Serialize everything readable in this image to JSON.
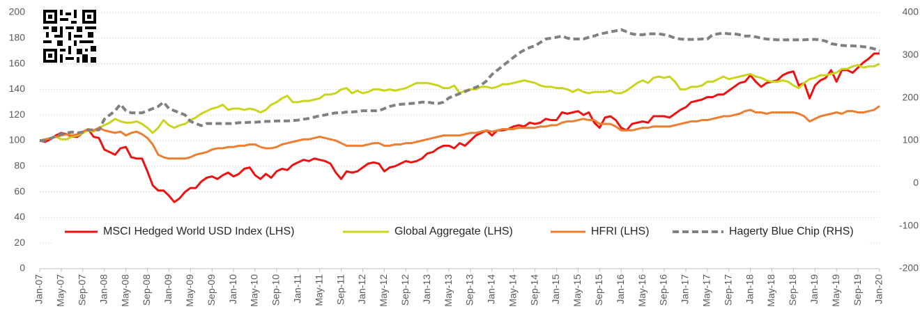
{
  "chart_data": {
    "type": "line",
    "categories": [
      "Jan-07",
      null,
      null,
      null,
      "May-07",
      null,
      null,
      null,
      "Sep-07",
      null,
      null,
      null,
      "Jan-08",
      null,
      null,
      null,
      "May-08",
      null,
      null,
      null,
      "Sep-08",
      null,
      null,
      null,
      "Jan-09",
      null,
      null,
      null,
      "May-09",
      null,
      null,
      null,
      "Sep-09",
      null,
      null,
      null,
      "Jan-10",
      null,
      null,
      null,
      "May-10",
      null,
      null,
      null,
      "Sep-10",
      null,
      null,
      null,
      "Jan-11",
      null,
      null,
      null,
      "May-11",
      null,
      null,
      null,
      "Sep-11",
      null,
      null,
      null,
      "Jan-12",
      null,
      null,
      null,
      "May-12",
      null,
      null,
      null,
      "Sep-12",
      null,
      null,
      null,
      "Jan-13",
      null,
      null,
      null,
      "May-13",
      null,
      null,
      null,
      "Sep-13",
      null,
      null,
      null,
      "Jan-14",
      null,
      null,
      null,
      "May-14",
      null,
      null,
      null,
      "Sep-14",
      null,
      null,
      null,
      "Jan-15",
      null,
      null,
      null,
      "May-15",
      null,
      null,
      null,
      "Sep-15",
      null,
      null,
      null,
      "Jan-16",
      null,
      null,
      null,
      "May-16",
      null,
      null,
      null,
      "Sep-16",
      null,
      null,
      null,
      "Jan-17",
      null,
      null,
      null,
      "May-17",
      null,
      null,
      null,
      "Sep-17",
      null,
      null,
      null,
      "Jan-18",
      null,
      null,
      null,
      "May-18",
      null,
      null,
      null,
      "Sep-18",
      null,
      null,
      null,
      "Jan-19",
      null,
      null,
      null,
      "May-19",
      null,
      null,
      null,
      "Sep-19",
      null,
      null,
      null,
      "Jan-20"
    ],
    "series": [
      {
        "name": "MSCI Hedged World USD Index (LHS)",
        "color": "#ee1111",
        "axis": "y",
        "dashed": false,
        "values": [
          100,
          99,
          101,
          104,
          106,
          105,
          103,
          103,
          106,
          109,
          103,
          102,
          93,
          91,
          89,
          94,
          95,
          87,
          86,
          86,
          76,
          65,
          61,
          61,
          57,
          52,
          55,
          60,
          63,
          63,
          68,
          71,
          72,
          70,
          73,
          75,
          72,
          74,
          78,
          79,
          73,
          70,
          74,
          71,
          76,
          78,
          77,
          81,
          83,
          85,
          84,
          86,
          85,
          84,
          82,
          75,
          70,
          76,
          75,
          76,
          79,
          82,
          83,
          82,
          76,
          79,
          80,
          82,
          84,
          83,
          84,
          86,
          90,
          91,
          94,
          96,
          96,
          94,
          98,
          96,
          100,
          104,
          106,
          108,
          104,
          108,
          108,
          109,
          111,
          112,
          111,
          114,
          113,
          114,
          117,
          116,
          116,
          122,
          121,
          122,
          123,
          120,
          122,
          114,
          110,
          118,
          119,
          116,
          110,
          108,
          113,
          114,
          115,
          114,
          119,
          119,
          119,
          118,
          121,
          124,
          126,
          130,
          131,
          132,
          134,
          134,
          136,
          136,
          139,
          142,
          145,
          146,
          151,
          146,
          142,
          145,
          146,
          147,
          151,
          153,
          154,
          143,
          145,
          133,
          143,
          147,
          149,
          155,
          146,
          155,
          155,
          153,
          157,
          161,
          164,
          168,
          168
        ]
      },
      {
        "name": "Global Aggregate (LHS)",
        "color": "#c9d41a",
        "axis": "y",
        "dashed": false,
        "values": [
          100,
          101,
          102,
          103,
          101,
          101,
          103,
          104,
          106,
          108,
          107,
          110,
          112,
          114,
          117,
          115,
          114,
          114,
          115,
          113,
          110,
          106,
          110,
          116,
          112,
          110,
          112,
          113,
          116,
          118,
          121,
          123,
          125,
          126,
          128,
          124,
          125,
          125,
          124,
          125,
          124,
          122,
          124,
          128,
          130,
          133,
          135,
          130,
          130,
          131,
          131,
          132,
          133,
          136,
          136,
          137,
          140,
          141,
          137,
          139,
          137,
          138,
          140,
          140,
          139,
          140,
          139,
          140,
          141,
          143,
          145,
          145,
          145,
          144,
          143,
          141,
          141,
          143,
          137,
          139,
          140,
          140,
          142,
          142,
          141,
          142,
          144,
          144,
          145,
          146,
          147,
          146,
          145,
          143,
          142,
          142,
          141,
          141,
          140,
          138,
          140,
          138,
          137,
          138,
          138,
          138,
          139,
          137,
          137,
          139,
          142,
          145,
          147,
          145,
          149,
          150,
          149,
          150,
          146,
          140,
          140,
          142,
          142,
          143,
          146,
          146,
          148,
          150,
          148,
          149,
          150,
          151,
          152,
          150,
          149,
          147,
          146,
          146,
          147,
          146,
          143,
          141,
          145,
          148,
          149,
          151,
          151,
          152,
          153,
          156,
          156,
          158,
          159,
          157,
          158,
          158,
          160
        ]
      },
      {
        "name": "HFRI (LHS)",
        "color": "#ed7d31",
        "axis": "y",
        "dashed": false,
        "values": [
          100,
          101,
          102,
          103,
          104,
          105,
          104,
          105,
          107,
          109,
          108,
          110,
          108,
          107,
          106,
          107,
          104,
          106,
          107,
          105,
          102,
          97,
          89,
          87,
          86,
          86,
          86,
          86,
          87,
          89,
          90,
          91,
          93,
          94,
          94,
          95,
          95,
          96,
          96,
          97,
          97,
          95,
          94,
          94,
          95,
          97,
          98,
          99,
          100,
          101,
          101,
          102,
          103,
          102,
          101,
          100,
          98,
          96,
          96,
          96,
          96,
          97,
          98,
          98,
          96,
          96,
          97,
          97,
          98,
          98,
          99,
          100,
          101,
          102,
          103,
          104,
          104,
          104,
          104,
          105,
          106,
          106,
          107,
          108,
          107,
          108,
          109,
          109,
          109,
          110,
          110,
          110,
          110,
          111,
          111,
          112,
          112,
          114,
          115,
          115,
          116,
          117,
          116,
          116,
          113,
          113,
          113,
          111,
          108,
          108,
          108,
          109,
          110,
          110,
          111,
          111,
          111,
          111,
          112,
          113,
          114,
          115,
          115,
          116,
          116,
          117,
          118,
          119,
          119,
          120,
          121,
          123,
          124,
          122,
          122,
          121,
          122,
          122,
          122,
          122,
          122,
          121,
          119,
          115,
          117,
          119,
          120,
          121,
          122,
          121,
          123,
          123,
          122,
          122,
          123,
          124,
          127
        ]
      },
      {
        "name": "Hagerty Blue Chip (RHS)",
        "color": "#808080",
        "axis": "y2",
        "dashed": true,
        "values": [
          100,
          100,
          105,
          110,
          115,
          118,
          120,
          118,
          120,
          125,
          125,
          125,
          150,
          160,
          170,
          185,
          170,
          165,
          165,
          165,
          170,
          175,
          180,
          190,
          175,
          170,
          165,
          160,
          145,
          140,
          135,
          140,
          140,
          140,
          140,
          140,
          140,
          142,
          142,
          143,
          143,
          144,
          145,
          145,
          146,
          146,
          146,
          147,
          148,
          150,
          152,
          155,
          158,
          160,
          163,
          165,
          165,
          167,
          167,
          168,
          170,
          170,
          170,
          170,
          175,
          180,
          183,
          185,
          186,
          187,
          188,
          190,
          190,
          188,
          187,
          190,
          200,
          205,
          210,
          215,
          220,
          225,
          230,
          240,
          255,
          265,
          275,
          285,
          295,
          305,
          312,
          318,
          322,
          330,
          338,
          340,
          342,
          345,
          340,
          338,
          338,
          338,
          342,
          345,
          350,
          352,
          355,
          357,
          360,
          355,
          350,
          348,
          348,
          350,
          350,
          350,
          348,
          345,
          340,
          338,
          337,
          337,
          337,
          338,
          338,
          348,
          350,
          352,
          350,
          350,
          348,
          345,
          345,
          343,
          340,
          338,
          337,
          336,
          336,
          336,
          336,
          336,
          336,
          337,
          337,
          336,
          333,
          327,
          325,
          323,
          322,
          322,
          321,
          320,
          318,
          315,
          310
        ]
      }
    ],
    "ylim": [
      0,
      200
    ],
    "yticks": [
      0,
      20,
      40,
      60,
      80,
      100,
      120,
      140,
      160,
      180,
      200
    ],
    "y2lim": [
      -200,
      400
    ],
    "y2ticks": [
      -200,
      -100,
      0,
      100,
      200,
      300,
      400
    ],
    "grid": true,
    "legend": "bottom"
  }
}
